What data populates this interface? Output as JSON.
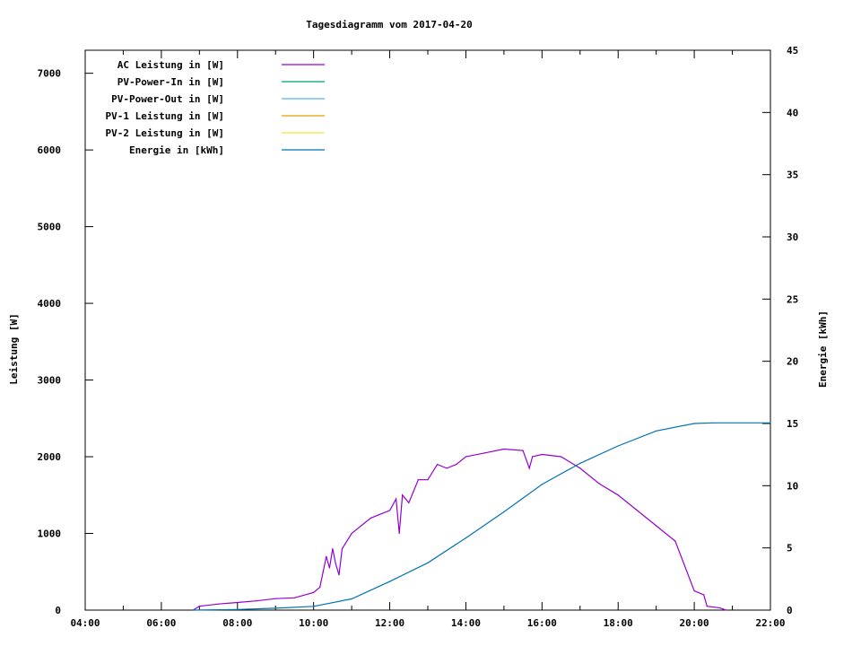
{
  "chart_data": {
    "type": "line",
    "title": "Tagesdiagramm vom 2017-04-20",
    "ylabel": "Leistung [W]",
    "y2label": "Energie [kWh]",
    "xlim": [
      "04:00",
      "22:00"
    ],
    "ylim": [
      0,
      7300
    ],
    "y2lim": [
      0,
      45
    ],
    "x_ticks": [
      "04:00",
      "06:00",
      "08:00",
      "10:00",
      "12:00",
      "14:00",
      "16:00",
      "18:00",
      "20:00",
      "22:00"
    ],
    "y_ticks": [
      0,
      1000,
      2000,
      3000,
      4000,
      5000,
      6000,
      7000
    ],
    "y2_ticks": [
      0,
      5,
      10,
      15,
      20,
      25,
      30,
      35,
      40,
      45
    ],
    "grid": false,
    "legend_placement": "top-left",
    "legend": [
      {
        "name": "AC Leistung in [W]",
        "color": "#9400d3"
      },
      {
        "name": "PV-Power-In in [W]",
        "color": "#009e73"
      },
      {
        "name": "PV-Power-Out in [W]",
        "color": "#56b4e9"
      },
      {
        "name": "PV-1 Leistung in [W]",
        "color": "#e69f00"
      },
      {
        "name": "PV-2 Leistung in [W]",
        "color": "#f0e442"
      },
      {
        "name": "Energie in [kWh]",
        "color": "#0072b2"
      }
    ],
    "series": [
      {
        "name": "AC Leistung in [W]",
        "axis": "y",
        "color": "#9400d3",
        "x": [
          "06:50",
          "07:00",
          "07:30",
          "08:00",
          "08:30",
          "09:00",
          "09:30",
          "10:00",
          "10:10",
          "10:15",
          "10:20",
          "10:25",
          "10:30",
          "10:35",
          "10:40",
          "10:45",
          "11:00",
          "11:30",
          "12:00",
          "12:10",
          "12:15",
          "12:20",
          "12:30",
          "12:45",
          "13:00",
          "13:15",
          "13:30",
          "13:45",
          "14:00",
          "14:30",
          "15:00",
          "15:30",
          "15:40",
          "15:45",
          "16:00",
          "16:30",
          "17:00",
          "17:30",
          "18:00",
          "18:30",
          "19:00",
          "19:30",
          "20:00",
          "20:15",
          "20:20",
          "20:40",
          "20:50"
        ],
        "y": [
          0,
          50,
          80,
          100,
          120,
          150,
          160,
          230,
          300,
          500,
          700,
          550,
          800,
          600,
          460,
          800,
          1000,
          1200,
          1300,
          1450,
          1000,
          1500,
          1400,
          1700,
          1700,
          1900,
          1850,
          1900,
          2000,
          2050,
          2100,
          2080,
          1850,
          2000,
          2030,
          2000,
          1850,
          1650,
          1500,
          1300,
          1100,
          900,
          250,
          200,
          50,
          30,
          0
        ]
      },
      {
        "name": "Energie in [kWh]",
        "axis": "y2",
        "color": "#0072b2",
        "x": [
          "06:50",
          "08:00",
          "09:00",
          "10:00",
          "11:00",
          "12:00",
          "13:00",
          "14:00",
          "15:00",
          "16:00",
          "17:00",
          "18:00",
          "19:00",
          "20:00",
          "20:30",
          "22:00"
        ],
        "y": [
          0,
          0.05,
          0.15,
          0.3,
          0.9,
          2.3,
          3.8,
          5.8,
          7.9,
          10.1,
          11.8,
          13.2,
          14.4,
          15.0,
          15.05,
          15.05
        ]
      }
    ]
  }
}
